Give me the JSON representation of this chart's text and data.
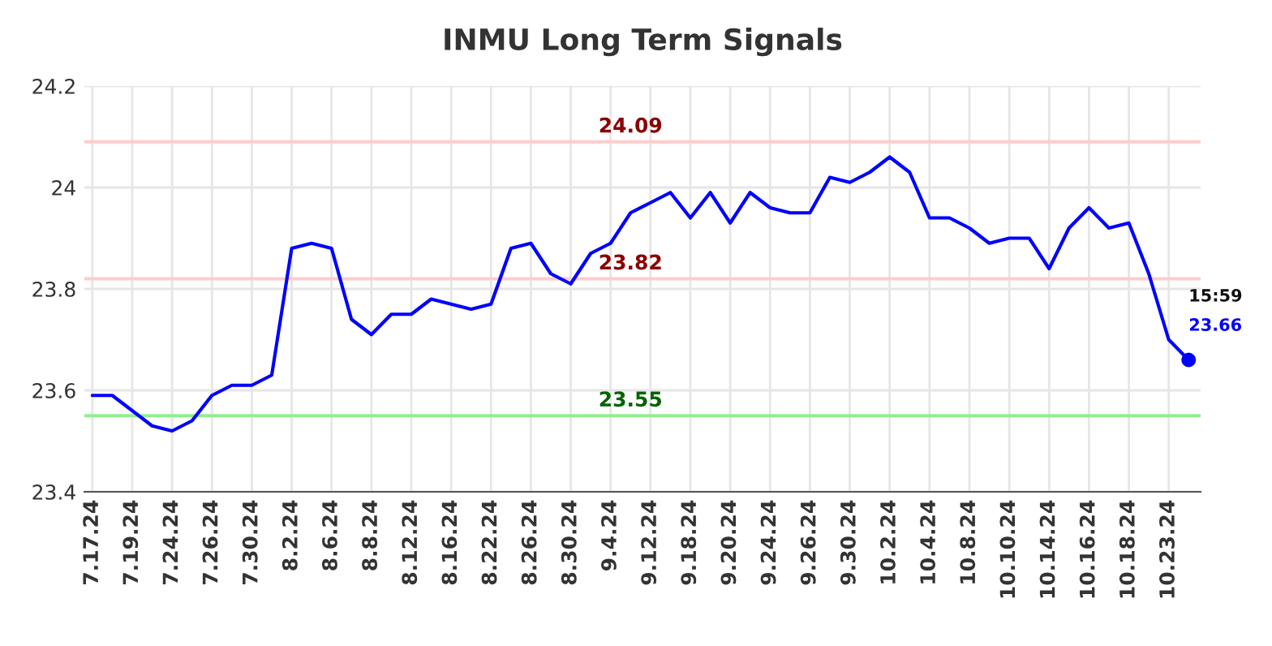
{
  "chart_data": {
    "type": "line",
    "title": "INMU Long Term Signals",
    "categories": [
      "7.17.24",
      null,
      "7.19.24",
      null,
      "7.24.24",
      null,
      "7.26.24",
      null,
      "7.30.24",
      null,
      "8.2.24",
      null,
      "8.6.24",
      null,
      "8.8.24",
      null,
      "8.12.24",
      null,
      "8.16.24",
      null,
      "8.22.24",
      null,
      "8.26.24",
      null,
      "8.30.24",
      null,
      "9.4.24",
      null,
      "9.12.24",
      null,
      "9.18.24",
      null,
      "9.20.24",
      null,
      "9.24.24",
      null,
      "9.26.24",
      null,
      "9.30.24",
      null,
      "10.2.24",
      null,
      "10.4.24",
      null,
      "10.8.24",
      null,
      "10.10.24",
      null,
      "10.14.24",
      null,
      "10.16.24",
      null,
      "10.18.24",
      null,
      "10.23.24",
      null
    ],
    "series": [
      {
        "color": "#0000ff",
        "values": [
          23.59,
          23.59,
          23.56,
          23.53,
          23.52,
          23.54,
          23.59,
          23.61,
          23.61,
          23.63,
          23.88,
          23.89,
          23.88,
          23.74,
          23.71,
          23.75,
          23.75,
          23.78,
          23.77,
          23.76,
          23.77,
          23.88,
          23.89,
          23.83,
          23.81,
          23.87,
          23.89,
          23.95,
          23.97,
          23.99,
          23.94,
          23.99,
          23.93,
          23.99,
          23.96,
          23.95,
          23.95,
          24.02,
          24.01,
          24.03,
          24.06,
          24.03,
          23.94,
          23.94,
          23.92,
          23.89,
          23.9,
          23.9,
          23.84,
          23.92,
          23.96,
          23.92,
          23.93,
          23.83,
          23.7,
          23.66
        ]
      }
    ],
    "ylim": [
      23.4,
      24.2
    ],
    "yticks": [
      23.4,
      23.6,
      23.8,
      24,
      24.2
    ],
    "grid": true,
    "marker": "none",
    "line_style": "solid",
    "ref_lines": [
      {
        "axis": "y",
        "value": 24.09,
        "label": "24.09",
        "color": "#ffcccc"
      },
      {
        "axis": "y",
        "value": 23.82,
        "label": "23.82",
        "color": "#ffcccc"
      },
      {
        "axis": "y",
        "value": 23.55,
        "label": "23.55",
        "color": "#90ee90"
      }
    ],
    "annotations": [
      "15:59",
      "23.66"
    ]
  }
}
